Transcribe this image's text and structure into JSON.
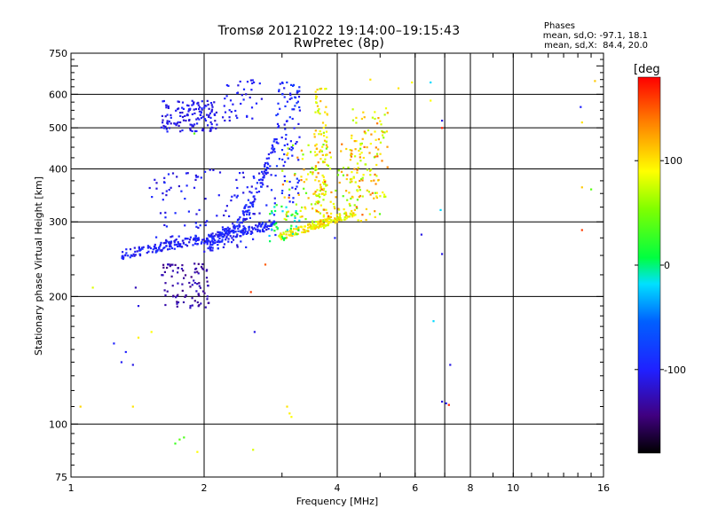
{
  "title": {
    "line1": "Tromsø 20121022 19:14:00–19:15:43",
    "line2": "RwPretec (8p)"
  },
  "phases": {
    "heading": "Phases",
    "o_stats": "mean, sd,O: -97.1, 18.1",
    "x_stats": "mean, sd,X:  84.4, 20.0"
  },
  "colorbar": {
    "unit": "[deg",
    "range": [
      -180,
      180
    ],
    "ticks": [
      {
        "value": 100,
        "label": "100"
      },
      {
        "value": 0,
        "label": "0"
      },
      {
        "value": -100,
        "label": "-100"
      }
    ]
  },
  "chart_data": {
    "type": "scatter",
    "xlabel": "Frequency [MHz]",
    "ylabel": "Stationary phase Virtual Height [km]",
    "xscale": "log",
    "yscale": "log",
    "xlim": [
      1,
      16
    ],
    "ylim": [
      75,
      750
    ],
    "x_ticks": [
      {
        "value": 1,
        "label": "1"
      },
      {
        "value": 2,
        "label": "2"
      },
      {
        "value": 4,
        "label": "4"
      },
      {
        "value": 6,
        "label": "6"
      },
      {
        "value": 8,
        "label": "8"
      },
      {
        "value": 10,
        "label": "10"
      },
      {
        "value": 16,
        "label": "16"
      }
    ],
    "y_ticks": [
      {
        "value": 75,
        "label": "75"
      },
      {
        "value": 100,
        "label": "100"
      },
      {
        "value": 200,
        "label": "200"
      },
      {
        "value": 300,
        "label": "300"
      },
      {
        "value": 400,
        "label": "400"
      },
      {
        "value": 500,
        "label": "500"
      },
      {
        "value": 600,
        "label": "600"
      },
      {
        "value": 750,
        "label": "750"
      }
    ],
    "x_grid": [
      2,
      4,
      6,
      7,
      8,
      10
    ],
    "y_grid": [
      100,
      200,
      300,
      400,
      500,
      600
    ],
    "grid": true,
    "color_by": "phase (deg)",
    "clusters": [
      {
        "name": "o-trace low",
        "x_range": [
          1.3,
          2.9
        ],
        "y_range": [
          245,
          300
        ],
        "phase_range": [
          -115,
          -85
        ],
        "count": 260
      },
      {
        "name": "o-trace rising",
        "x_range": [
          2.0,
          2.95
        ],
        "y_range": [
          255,
          470
        ],
        "phase_range": [
          -110,
          -85
        ],
        "count": 170
      },
      {
        "name": "o-scatter mid",
        "x_range": [
          1.5,
          2.9
        ],
        "y_range": [
          260,
          400
        ],
        "phase_range": [
          -120,
          -90
        ],
        "count": 120
      },
      {
        "name": "o-upper",
        "x_range": [
          1.6,
          2.15
        ],
        "y_range": [
          490,
          580
        ],
        "phase_range": [
          -120,
          -95
        ],
        "count": 140
      },
      {
        "name": "o-upper spikes",
        "x_range": [
          2.2,
          2.7
        ],
        "y_range": [
          520,
          650
        ],
        "phase_range": [
          -115,
          -95
        ],
        "count": 40
      },
      {
        "name": "o-low purple",
        "x_range": [
          1.6,
          2.05
        ],
        "y_range": [
          188,
          240
        ],
        "phase_range": [
          -145,
          -120
        ],
        "count": 90
      },
      {
        "name": "o-column 3",
        "x_range": [
          2.9,
          3.3
        ],
        "y_range": [
          330,
          650
        ],
        "phase_range": [
          -110,
          -80
        ],
        "count": 90
      },
      {
        "name": "x-trace",
        "x_range": [
          2.95,
          4.4
        ],
        "y_range": [
          270,
          320
        ],
        "phase_range": [
          70,
          120
        ],
        "count": 170
      },
      {
        "name": "x-column 3.7",
        "x_range": [
          3.55,
          3.8
        ],
        "y_range": [
          290,
          620
        ],
        "phase_range": [
          60,
          120
        ],
        "count": 110
      },
      {
        "name": "x-scatter mid",
        "x_range": [
          3.0,
          5.0
        ],
        "y_range": [
          300,
          460
        ],
        "phase_range": [
          40,
          150
        ],
        "count": 160
      },
      {
        "name": "x-column 4.5",
        "x_range": [
          4.3,
          5.2
        ],
        "y_range": [
          340,
          560
        ],
        "phase_range": [
          60,
          140
        ],
        "count": 90
      },
      {
        "name": "cyan transition",
        "x_range": [
          2.8,
          3.3
        ],
        "y_range": [
          270,
          330
        ],
        "phase_range": [
          -30,
          40
        ],
        "count": 40
      }
    ],
    "isolated_points": [
      {
        "x": 1.05,
        "y": 110,
        "phase": 105
      },
      {
        "x": 1.12,
        "y": 210,
        "phase": 80
      },
      {
        "x": 1.25,
        "y": 155,
        "phase": -100
      },
      {
        "x": 1.3,
        "y": 140,
        "phase": -105
      },
      {
        "x": 1.33,
        "y": 148,
        "phase": -100
      },
      {
        "x": 1.38,
        "y": 110,
        "phase": 100
      },
      {
        "x": 1.42,
        "y": 160,
        "phase": 95
      },
      {
        "x": 1.4,
        "y": 210,
        "phase": -125
      },
      {
        "x": 1.42,
        "y": 190,
        "phase": -110
      },
      {
        "x": 1.38,
        "y": 138,
        "phase": -110
      },
      {
        "x": 1.52,
        "y": 165,
        "phase": 90
      },
      {
        "x": 1.72,
        "y": 90,
        "phase": 30
      },
      {
        "x": 1.76,
        "y": 92,
        "phase": 40
      },
      {
        "x": 1.8,
        "y": 93,
        "phase": 35
      },
      {
        "x": 1.93,
        "y": 86,
        "phase": 90
      },
      {
        "x": 2.58,
        "y": 87,
        "phase": 80
      },
      {
        "x": 2.6,
        "y": 165,
        "phase": -110
      },
      {
        "x": 2.55,
        "y": 205,
        "phase": 160
      },
      {
        "x": 2.75,
        "y": 238,
        "phase": 150
      },
      {
        "x": 3.08,
        "y": 110,
        "phase": 100
      },
      {
        "x": 3.12,
        "y": 106,
        "phase": 95
      },
      {
        "x": 3.15,
        "y": 104,
        "phase": 90
      },
      {
        "x": 3.95,
        "y": 275,
        "phase": -100
      },
      {
        "x": 6.2,
        "y": 280,
        "phase": -110
      },
      {
        "x": 6.5,
        "y": 640,
        "phase": -20
      },
      {
        "x": 6.6,
        "y": 175,
        "phase": -20
      },
      {
        "x": 6.85,
        "y": 320,
        "phase": -20
      },
      {
        "x": 6.9,
        "y": 500,
        "phase": 170
      },
      {
        "x": 6.9,
        "y": 520,
        "phase": -110
      },
      {
        "x": 6.9,
        "y": 252,
        "phase": -110
      },
      {
        "x": 6.9,
        "y": 113,
        "phase": -110
      },
      {
        "x": 7.05,
        "y": 112,
        "phase": -105
      },
      {
        "x": 7.15,
        "y": 111,
        "phase": 170
      },
      {
        "x": 7.2,
        "y": 138,
        "phase": -110
      },
      {
        "x": 14.2,
        "y": 560,
        "phase": -100
      },
      {
        "x": 14.3,
        "y": 515,
        "phase": 100
      },
      {
        "x": 14.3,
        "y": 362,
        "phase": 110
      },
      {
        "x": 14.3,
        "y": 287,
        "phase": 160
      },
      {
        "x": 15.0,
        "y": 358,
        "phase": 40
      },
      {
        "x": 15.3,
        "y": 645,
        "phase": 110
      },
      {
        "x": 4.75,
        "y": 650,
        "phase": 100
      },
      {
        "x": 5.9,
        "y": 640,
        "phase": 90
      },
      {
        "x": 5.5,
        "y": 620,
        "phase": 100
      },
      {
        "x": 6.5,
        "y": 580,
        "phase": 90
      },
      {
        "x": 1.9,
        "y": 485,
        "phase": 40
      }
    ]
  }
}
